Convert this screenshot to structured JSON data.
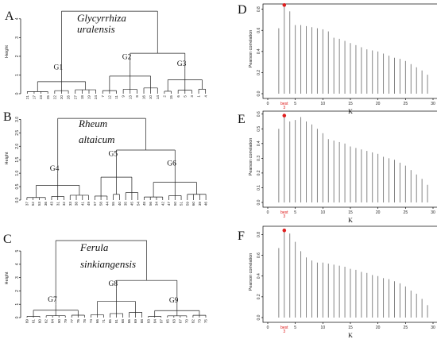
{
  "colors": {
    "spike": "#777777",
    "best_marker": "#e02020",
    "best_label": "#dd1111",
    "tree": "#222222"
  },
  "chart_data": [
    {
      "type": "dendrogram",
      "panel": "A",
      "species_lines": [
        "Glycyrrhiza",
        "uralensis"
      ],
      "ylabel": "Height",
      "yticks": [
        "0",
        "1",
        "2",
        "3",
        "4"
      ],
      "ylim": [
        0,
        4.5
      ],
      "groups": [
        "G1",
        "G2",
        "G3"
      ],
      "leaves": [
        [
          "21",
          "17",
          "23",
          "25",
          "22",
          "20",
          "26",
          "27",
          "18",
          "19",
          "24"
        ],
        [
          "7",
          "12",
          "11",
          "9",
          "13",
          "8",
          "16",
          "10",
          "14"
        ],
        [
          "2",
          "15",
          "6",
          "5",
          "3",
          "1",
          "4"
        ]
      ]
    },
    {
      "type": "bar",
      "panel": "D",
      "xlabel": "K",
      "ylabel": "Pearson correlation",
      "x_start": 2,
      "xticks": [
        "0",
        "5",
        "10",
        "15",
        "20",
        "25",
        "30"
      ],
      "xlim": [
        0,
        30
      ],
      "yticks": [
        "0.0",
        "0.2",
        "0.4",
        "0.6",
        "0.8"
      ],
      "ylim": [
        0,
        0.85
      ],
      "best_k": 3,
      "best_label": "best",
      "values": [
        0.62,
        0.84,
        0.78,
        0.65,
        0.65,
        0.64,
        0.63,
        0.62,
        0.61,
        0.59,
        0.53,
        0.52,
        0.5,
        0.48,
        0.46,
        0.44,
        0.42,
        0.41,
        0.4,
        0.38,
        0.36,
        0.34,
        0.33,
        0.31,
        0.28,
        0.25,
        0.22,
        0.18
      ]
    },
    {
      "type": "dendrogram",
      "panel": "B",
      "species_lines": [
        "Rheum",
        "altaicum"
      ],
      "ylabel": "Height",
      "yticks": [
        "0.0",
        "0.5",
        "1.0",
        "1.5",
        "2.0",
        "2.5",
        "3.0"
      ],
      "ylim": [
        0,
        3.1
      ],
      "groups": [
        "G4",
        "G5",
        "G6"
      ],
      "leaves": [
        [
          "37",
          "52",
          "53",
          "36",
          "43",
          "31",
          "32",
          "33",
          "38",
          "41",
          "49"
        ],
        [
          "57",
          "58",
          "44",
          "55",
          "40",
          "35",
          "45",
          "54"
        ],
        [
          "48",
          "56",
          "34",
          "42",
          "47",
          "50",
          "51",
          "59",
          "60",
          "39",
          "46"
        ]
      ]
    },
    {
      "type": "bar",
      "panel": "E",
      "xlabel": "K",
      "ylabel": "Pearson correlation",
      "x_start": 2,
      "xticks": [
        "0",
        "5",
        "10",
        "15",
        "20",
        "25",
        "30"
      ],
      "xlim": [
        0,
        30
      ],
      "yticks": [
        "0.0",
        "0.1",
        "0.2",
        "0.3",
        "0.4",
        "0.5",
        "0.6"
      ],
      "ylim": [
        0,
        0.62
      ],
      "best_k": 3,
      "best_label": "best",
      "values": [
        0.5,
        0.59,
        0.55,
        0.56,
        0.58,
        0.55,
        0.53,
        0.5,
        0.47,
        0.43,
        0.42,
        0.41,
        0.4,
        0.38,
        0.37,
        0.36,
        0.35,
        0.34,
        0.33,
        0.31,
        0.3,
        0.29,
        0.27,
        0.25,
        0.22,
        0.19,
        0.16,
        0.12
      ]
    },
    {
      "type": "dendrogram",
      "panel": "C",
      "species_lines": [
        "Ferula",
        "sinkiangensis"
      ],
      "ylabel": "Height",
      "yticks": [
        "0",
        "1",
        "2",
        "3",
        "4",
        "5"
      ],
      "ylim": [
        0,
        5.9
      ],
      "groups": [
        "G7",
        "G8",
        "G9"
      ],
      "leaves": [
        [
          "89",
          "61",
          "80",
          "62",
          "64",
          "90",
          "79",
          "77",
          "76",
          "78"
        ],
        [
          "74",
          "66",
          "71",
          "85",
          "81",
          "68",
          "86",
          "69",
          "88"
        ],
        [
          "83",
          "84",
          "87",
          "65",
          "63",
          "67",
          "70",
          "82",
          "73",
          "75"
        ]
      ]
    },
    {
      "type": "bar",
      "panel": "F",
      "xlabel": "K",
      "ylabel": "Pearson correlation",
      "x_start": 2,
      "xticks": [
        "0",
        "5",
        "10",
        "15",
        "20",
        "25",
        "30"
      ],
      "xlim": [
        0,
        30
      ],
      "yticks": [
        "0.0",
        "0.2",
        "0.4",
        "0.6",
        "0.8"
      ],
      "ylim": [
        0,
        0.88
      ],
      "best_k": 3,
      "best_label": "best",
      "values": [
        0.67,
        0.84,
        0.81,
        0.73,
        0.64,
        0.58,
        0.55,
        0.53,
        0.53,
        0.52,
        0.51,
        0.5,
        0.49,
        0.47,
        0.46,
        0.44,
        0.43,
        0.41,
        0.4,
        0.38,
        0.37,
        0.35,
        0.33,
        0.3,
        0.26,
        0.23,
        0.18,
        0.12
      ]
    }
  ]
}
